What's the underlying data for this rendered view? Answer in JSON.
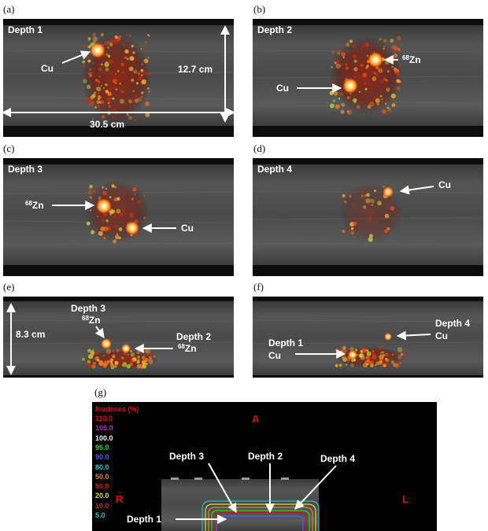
{
  "panel_letters": {
    "a": "(a)",
    "b": "(b)",
    "c": "(c)",
    "d": "(d)",
    "e": "(e)",
    "f": "(f)",
    "g": "(g)"
  },
  "panel_a": {
    "depth": "Depth 1",
    "cu": "Cu",
    "height": "12.7 cm",
    "width": "30.5 cm"
  },
  "panel_b": {
    "depth": "Depth 2",
    "zn_sup": "68",
    "zn": "Zn",
    "cu": "Cu"
  },
  "panel_c": {
    "depth": "Depth 3",
    "zn_sup": "68",
    "zn": "Zn",
    "cu": "Cu"
  },
  "panel_d": {
    "depth": "Depth 4",
    "cu": "Cu"
  },
  "panel_e": {
    "depth3": "Depth 3",
    "zn_sup": "68",
    "zn": "Zn",
    "depth2": "Depth 2",
    "zn2_sup": "68",
    "zn2": "Zn",
    "height": "8.3 cm"
  },
  "panel_f": {
    "depth4": "Depth 4",
    "cu4": "Cu",
    "depth1": "Depth 1",
    "cu1": "Cu"
  },
  "panel_g": {
    "isodose_title": "Isodoses (%)",
    "isodoses": [
      {
        "value": "110.0",
        "color": "#d61010"
      },
      {
        "value": "105.0",
        "color": "#c11fc1"
      },
      {
        "value": "100.0",
        "color": "#f2f2f2"
      },
      {
        "value": "95.0",
        "color": "#2fd12f"
      },
      {
        "value": "90.0",
        "color": "#5a5af0"
      },
      {
        "value": "80.0",
        "color": "#33c1c8"
      },
      {
        "value": "50.0",
        "color": "#e08a2a"
      },
      {
        "value": "50.0",
        "color": "#d21a1a"
      },
      {
        "value": "20.0",
        "color": "#e3d930"
      },
      {
        "value": "10.0",
        "color": "#b23a14"
      },
      {
        "value": "5.0",
        "color": "#36b6c2"
      }
    ],
    "A": "A",
    "L": "L",
    "R": "R",
    "depth1": "Depth 1",
    "depth2": "Depth 2",
    "depth3": "Depth 3",
    "depth4": "Depth 4"
  }
}
